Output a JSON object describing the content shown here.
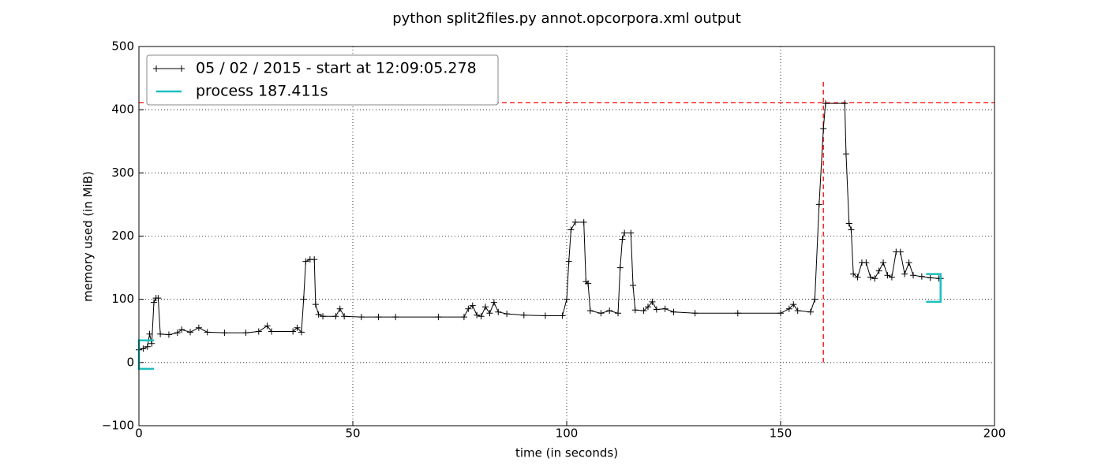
{
  "chart_data": {
    "type": "line",
    "title": "python split2files.py annot.opcorpora.xml output",
    "xlabel": "time (in seconds)",
    "ylabel": "memory used (in MiB)",
    "xlim": [
      0,
      200
    ],
    "ylim": [
      -100,
      500
    ],
    "xticks": [
      0,
      50,
      100,
      150,
      200
    ],
    "yticks": [
      {
        "value": -100,
        "label": "−100"
      },
      0,
      100,
      200,
      300,
      400,
      500
    ],
    "grid": true,
    "legend": "upper left",
    "series": [
      {
        "name": "05 / 02 / 2015 - start at 12:09:05.278",
        "color": "#000000",
        "marker": "+",
        "x": [
          0,
          1,
          2,
          2.5,
          3,
          3.5,
          4,
          4.5,
          5,
          7,
          9,
          10,
          12,
          14,
          16,
          20,
          25,
          28,
          30,
          31,
          36,
          37,
          38,
          38.5,
          39,
          40,
          41,
          41.3,
          42,
          43,
          46,
          47,
          48,
          52,
          56,
          60,
          70,
          76,
          77,
          78,
          79,
          80,
          81,
          82,
          83,
          84,
          86,
          90,
          95,
          99,
          100,
          100.5,
          101,
          102,
          104,
          104.5,
          105,
          105.5,
          108,
          110,
          112,
          112.5,
          113,
          113.5,
          115,
          115.5,
          116,
          118,
          119,
          120,
          121,
          123,
          125,
          130,
          140,
          150,
          152,
          153,
          154,
          157,
          158,
          159,
          160,
          160.5,
          165,
          165.3,
          166,
          166.5,
          167,
          168,
          169,
          170,
          171,
          172,
          173,
          174,
          175,
          176,
          177,
          178,
          179,
          180,
          181,
          183,
          185,
          187,
          187.4
        ],
        "values": [
          20,
          22,
          25,
          45,
          30,
          95,
          102,
          102,
          45,
          44,
          47,
          52,
          48,
          55,
          48,
          47,
          47,
          49,
          58,
          49,
          49,
          55,
          48,
          100,
          160,
          163,
          163,
          92,
          76,
          73,
          73,
          85,
          73,
          72,
          72,
          72,
          72,
          72,
          85,
          90,
          75,
          73,
          88,
          78,
          95,
          80,
          77,
          75,
          74,
          74,
          100,
          160,
          210,
          222,
          222,
          128,
          125,
          82,
          78,
          82,
          78,
          150,
          195,
          205,
          205,
          122,
          83,
          82,
          88,
          96,
          84,
          85,
          80,
          78,
          78,
          78,
          85,
          92,
          82,
          80,
          100,
          250,
          370,
          410,
          410,
          330,
          220,
          210,
          140,
          135,
          158,
          158,
          135,
          133,
          145,
          158,
          138,
          135,
          175,
          175,
          140,
          158,
          138,
          136,
          134,
          133,
          133
        ]
      },
      {
        "name": "process 187.411s",
        "color": "#1cbfbf",
        "x": [
          3.5,
          0,
          0,
          3.5,
          3.5,
          184,
          187.4,
          187.4,
          184
        ],
        "values": [
          35,
          35,
          -10,
          -10,
          null,
          140,
          140,
          96,
          96
        ]
      }
    ],
    "hlines": [
      {
        "y": 411,
        "color": "#ff0000"
      }
    ],
    "vlines": [
      {
        "x": 160,
        "y": [
          0,
          449
        ],
        "color": "#ff0000"
      }
    ]
  }
}
